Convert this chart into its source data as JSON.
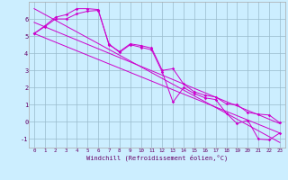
{
  "bg_color": "#cceeff",
  "line_color": "#cc00cc",
  "grid_color": "#99bbcc",
  "xlabel": "Windchill (Refroidissement éolien,°C)",
  "xlabel_color": "#660066",
  "tick_color": "#660066",
  "xlim": [
    -0.5,
    23.5
  ],
  "ylim": [
    -1.5,
    7.0
  ],
  "yticks": [
    -1,
    0,
    1,
    2,
    3,
    4,
    5,
    6
  ],
  "xticks": [
    0,
    1,
    2,
    3,
    4,
    5,
    6,
    7,
    8,
    9,
    10,
    11,
    12,
    13,
    14,
    15,
    16,
    17,
    18,
    19,
    20,
    21,
    22,
    23
  ],
  "series1_x": [
    0,
    1,
    2,
    3,
    4,
    5,
    6,
    7,
    8,
    9,
    10,
    11,
    12,
    13,
    14,
    15,
    16,
    17,
    18,
    19,
    20,
    21,
    22,
    23
  ],
  "series1_y": [
    5.15,
    5.6,
    6.1,
    6.25,
    6.6,
    6.6,
    6.55,
    4.5,
    4.1,
    4.55,
    4.45,
    4.3,
    3.0,
    3.1,
    2.2,
    1.75,
    1.55,
    1.45,
    1.05,
    1.0,
    0.55,
    0.45,
    0.4,
    -0.05
  ],
  "series2_x": [
    0,
    1,
    2,
    3,
    4,
    5,
    6,
    7,
    8,
    9,
    10,
    11,
    12,
    13,
    14,
    15,
    16,
    17,
    18,
    19,
    20,
    21,
    22,
    23
  ],
  "series2_y": [
    5.15,
    5.55,
    6.0,
    6.0,
    6.3,
    6.45,
    6.5,
    4.55,
    4.05,
    4.5,
    4.35,
    4.2,
    2.9,
    1.15,
    2.0,
    1.65,
    1.4,
    1.3,
    0.5,
    -0.1,
    0.1,
    -1.0,
    -1.05,
    -0.65
  ],
  "trend1_x": [
    0,
    23
  ],
  "trend1_y": [
    5.15,
    -0.65
  ],
  "trend2_x": [
    0,
    23
  ],
  "trend2_y": [
    6.6,
    -1.2
  ],
  "trend3_x": [
    0,
    23
  ],
  "trend3_y": [
    5.8,
    -0.1
  ]
}
